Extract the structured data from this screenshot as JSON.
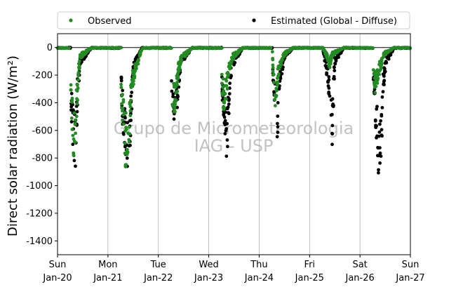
{
  "chart_data": {
    "type": "scatter",
    "title": "",
    "xlabel": "",
    "ylabel": "Direct solar radiation (W/m²)",
    "ylim": [
      -1500,
      100
    ],
    "yticks": [
      0,
      -200,
      -400,
      -600,
      -800,
      -1000,
      -1200,
      -1400
    ],
    "xlim": [
      0,
      7
    ],
    "xticks": [
      {
        "x": 0,
        "day": "Sun",
        "date": "Jan-20"
      },
      {
        "x": 1,
        "day": "Mon",
        "date": "Jan-21"
      },
      {
        "x": 2,
        "day": "Tue",
        "date": "Jan-22"
      },
      {
        "x": 3,
        "day": "Wed",
        "date": "Jan-23"
      },
      {
        "x": 4,
        "day": "Thu",
        "date": "Jan-24"
      },
      {
        "x": 5,
        "day": "Fri",
        "date": "Jan-25"
      },
      {
        "x": 6,
        "day": "Sat",
        "date": "Jan-26"
      },
      {
        "x": 7,
        "day": "Sun",
        "date": "Jan-27"
      }
    ],
    "grid": "vertical",
    "zero_line": 0,
    "legend": {
      "placement": "top",
      "columns": 2
    },
    "watermark": [
      "Grupo de Micrometeorologia",
      "IAG - USP"
    ],
    "series": [
      {
        "name": "Observed",
        "color": "#228b22",
        "marker": "circle"
      },
      {
        "name": "Estimated (Global - Diffuse)",
        "color": "#000000",
        "marker": "circle"
      }
    ],
    "days": [
      {
        "start": 0,
        "noon_peak": -940,
        "obs": [
          [
            0.25,
            -320
          ],
          [
            0.3,
            -700
          ],
          [
            0.33,
            -860
          ],
          [
            0.42,
            -200
          ],
          [
            0.45,
            -80
          ]
        ],
        "est": [
          [
            0.25,
            -330
          ],
          [
            0.31,
            -720
          ],
          [
            0.35,
            -900
          ],
          [
            0.4,
            -380
          ],
          [
            0.45,
            -120
          ]
        ]
      },
      {
        "start": 1,
        "noon_peak": -970,
        "obs": [
          [
            0.25,
            -240
          ],
          [
            0.3,
            -640
          ],
          [
            0.36,
            -880
          ],
          [
            0.42,
            -700
          ],
          [
            0.48,
            -300
          ]
        ],
        "est": [
          [
            0.25,
            -260
          ],
          [
            0.3,
            -620
          ],
          [
            0.36,
            -900
          ],
          [
            0.44,
            -780
          ],
          [
            0.5,
            -200
          ]
        ]
      },
      {
        "start": 2,
        "noon_peak": -560,
        "obs": [
          [
            0.25,
            -400
          ],
          [
            0.3,
            -480
          ],
          [
            0.35,
            -420
          ],
          [
            0.4,
            -200
          ],
          [
            0.45,
            -100
          ]
        ],
        "est": [
          [
            0.25,
            -400
          ],
          [
            0.3,
            -540
          ],
          [
            0.35,
            -520
          ],
          [
            0.4,
            -300
          ],
          [
            0.45,
            -120
          ]
        ]
      },
      {
        "start": 3,
        "noon_peak": -860,
        "obs": [
          [
            0.25,
            -300
          ],
          [
            0.3,
            -460
          ],
          [
            0.34,
            -380
          ],
          [
            0.4,
            -200
          ],
          [
            0.46,
            -90
          ]
        ],
        "est": [
          [
            0.25,
            -300
          ],
          [
            0.3,
            -520
          ],
          [
            0.36,
            -840
          ],
          [
            0.42,
            -300
          ],
          [
            0.46,
            -150
          ]
        ]
      },
      {
        "start": 4,
        "noon_peak": -700,
        "obs": [
          [
            0.28,
            -280
          ],
          [
            0.32,
            -420
          ],
          [
            0.38,
            -200
          ],
          [
            0.44,
            -120
          ],
          [
            0.5,
            -60
          ]
        ],
        "est": [
          [
            0.28,
            -300
          ],
          [
            0.33,
            -500
          ],
          [
            0.36,
            -700
          ],
          [
            0.42,
            -250
          ],
          [
            0.5,
            -80
          ]
        ]
      },
      {
        "start": 5,
        "noon_peak": -700,
        "obs": [
          [
            0.35,
            -80
          ],
          [
            0.4,
            -150
          ],
          [
            0.45,
            -60
          ]
        ],
        "est": [
          [
            0.35,
            -220
          ],
          [
            0.4,
            -380
          ],
          [
            0.45,
            -700
          ],
          [
            0.5,
            -120
          ]
        ]
      },
      {
        "start": 6,
        "noon_peak": -920,
        "obs": [
          [
            0.26,
            -200
          ],
          [
            0.3,
            -320
          ],
          [
            0.42,
            -140
          ],
          [
            0.48,
            -60
          ]
        ],
        "est": [
          [
            0.26,
            -240
          ],
          [
            0.31,
            -560
          ],
          [
            0.37,
            -920
          ],
          [
            0.42,
            -840
          ],
          [
            0.46,
            -320
          ],
          [
            0.52,
            -120
          ]
        ]
      }
    ]
  }
}
